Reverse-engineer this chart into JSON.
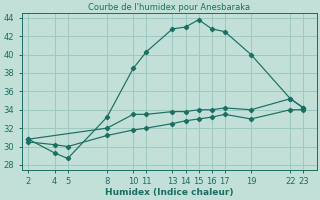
{
  "title": "Courbe de l'humidex pour Anesbaraka",
  "xlabel": "Humidex (Indice chaleur)",
  "bg_color": "#c2e0d8",
  "grid_color": "#9dc8c0",
  "line_color": "#1a6e62",
  "ylim": [
    27.5,
    44.5
  ],
  "yticks": [
    28,
    30,
    32,
    34,
    36,
    38,
    40,
    42,
    44
  ],
  "xticks": [
    2,
    4,
    5,
    8,
    10,
    11,
    13,
    14,
    15,
    16,
    17,
    19,
    22,
    23
  ],
  "xlim": [
    1.5,
    24.0
  ],
  "line_peak_x": [
    2,
    4,
    5,
    8,
    10,
    11,
    13,
    14,
    15,
    16,
    17,
    19,
    22,
    23
  ],
  "line_peak_y": [
    30.8,
    29.3,
    28.7,
    33.2,
    38.5,
    40.3,
    42.8,
    43.0,
    43.8,
    42.8,
    42.5,
    40.0,
    35.2,
    34.2
  ],
  "line_mid_x": [
    2,
    8,
    10,
    11,
    13,
    14,
    15,
    16,
    17,
    19,
    22,
    23
  ],
  "line_mid_y": [
    30.8,
    32.0,
    33.5,
    33.5,
    33.8,
    33.8,
    34.0,
    34.0,
    34.2,
    34.0,
    35.2,
    34.2
  ],
  "line_low_x": [
    2,
    4,
    5,
    8,
    10,
    11,
    13,
    14,
    15,
    16,
    17,
    19,
    22,
    23
  ],
  "line_low_y": [
    30.5,
    30.2,
    30.0,
    31.2,
    31.8,
    32.0,
    32.5,
    32.8,
    33.0,
    33.2,
    33.5,
    33.0,
    34.0,
    34.0
  ],
  "title_fontsize": 6,
  "axis_fontsize": 6.5,
  "tick_fontsize": 6
}
